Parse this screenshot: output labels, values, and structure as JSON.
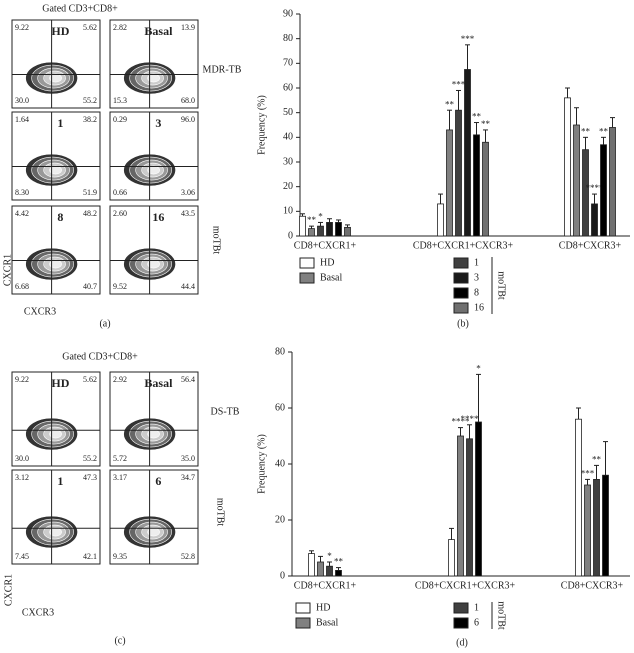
{
  "chart_data": [
    {
      "type": "bar",
      "panel_label": "(b)",
      "y_label": "Frequency (%)",
      "categories": [
        "CD8+CXCR1+",
        "CD8+CXCR1+CXCR3+",
        "CD8+CXCR3+"
      ],
      "ylim": [
        0,
        90
      ],
      "yticks": [
        0,
        10,
        20,
        30,
        40,
        50,
        60,
        70,
        80,
        90
      ],
      "legend_group_label": "moTBt",
      "series": [
        {
          "name": "HD",
          "color": "#ffffff",
          "values": [
            8,
            13,
            56
          ],
          "errors": [
            1,
            4,
            4
          ],
          "stars": [
            null,
            null,
            null
          ]
        },
        {
          "name": "Basal",
          "color": "#808080",
          "values": [
            3,
            43,
            45
          ],
          "errors": [
            1,
            8,
            7
          ],
          "stars": [
            "**",
            "**",
            null
          ]
        },
        {
          "name": "1",
          "color": "#404040",
          "values": [
            4,
            51,
            35
          ],
          "errors": [
            1.5,
            8,
            5
          ],
          "stars": [
            "*",
            "***",
            "**"
          ]
        },
        {
          "name": "3",
          "color": "#1a1a1a",
          "values": [
            5.5,
            67.5,
            13
          ],
          "errors": [
            1.5,
            10,
            4
          ],
          "stars": [
            null,
            "***",
            "****"
          ]
        },
        {
          "name": "8",
          "color": "#000000",
          "values": [
            5.5,
            41,
            37
          ],
          "errors": [
            1,
            5,
            3
          ],
          "stars": [
            null,
            "**",
            "**"
          ]
        },
        {
          "name": "16",
          "color": "#707070",
          "values": [
            3.5,
            38,
            44
          ],
          "errors": [
            1,
            5,
            4
          ],
          "stars": [
            null,
            "**",
            null
          ]
        }
      ]
    },
    {
      "type": "bar",
      "panel_label": "(d)",
      "y_label": "Frequency (%)",
      "categories": [
        "CD8+CXCR1+",
        "CD8+CXCR1+CXCR3+",
        "CD8+CXCR3+"
      ],
      "ylim": [
        0,
        80
      ],
      "yticks": [
        0,
        20,
        40,
        60,
        80
      ],
      "legend_group_label": "moTBt",
      "series": [
        {
          "name": "HD",
          "color": "#ffffff",
          "values": [
            8,
            13,
            56
          ],
          "errors": [
            1,
            4,
            4
          ],
          "stars": [
            null,
            null,
            null
          ]
        },
        {
          "name": "Basal",
          "color": "#808080",
          "values": [
            5,
            50,
            32.5
          ],
          "errors": [
            2,
            3,
            2
          ],
          "stars": [
            null,
            "****",
            "***"
          ]
        },
        {
          "name": "1",
          "color": "#404040",
          "values": [
            3.5,
            49,
            34.5
          ],
          "errors": [
            1.5,
            5,
            5
          ],
          "stars": [
            "*",
            "****",
            "**"
          ]
        },
        {
          "name": "6",
          "color": "#000000",
          "values": [
            2,
            55,
            36
          ],
          "errors": [
            1,
            17,
            12
          ],
          "stars": [
            "**",
            "*",
            null
          ]
        }
      ]
    }
  ],
  "flow_figures": [
    {
      "title": "Gated CD3+CD8+",
      "panel_label": "(a)",
      "x_label": "CXCR3",
      "y_label": "CXCR1",
      "row_labels": [
        "MDR-TB",
        "moTBt"
      ],
      "plots": [
        {
          "name": "HD",
          "quadrants": [
            "9.22",
            "5.62",
            "30.0",
            "55.2"
          ]
        },
        {
          "name": "Basal",
          "quadrants": [
            "2.82",
            "13.9",
            "15.3",
            "68.0"
          ]
        },
        {
          "name": "1",
          "quadrants": [
            "1.64",
            "38.2",
            "8.30",
            "51.9"
          ]
        },
        {
          "name": "3",
          "quadrants": [
            "0.29",
            "96.0",
            "0.66",
            "3.06"
          ]
        },
        {
          "name": "8",
          "quadrants": [
            "4.42",
            "48.2",
            "6.68",
            "40.7"
          ]
        },
        {
          "name": "16",
          "quadrants": [
            "2.60",
            "43.5",
            "9.52",
            "44.4"
          ]
        }
      ]
    },
    {
      "title": "Gated CD3+CD8+",
      "panel_label": "(c)",
      "x_label": "CXCR3",
      "y_label": "CXCR1",
      "row_labels": [
        "DS-TB",
        "moTBt"
      ],
      "plots": [
        {
          "name": "HD",
          "quadrants": [
            "9.22",
            "5.62",
            "30.0",
            "55.2"
          ]
        },
        {
          "name": "Basal",
          "quadrants": [
            "2.92",
            "56.4",
            "5.72",
            "35.0"
          ]
        },
        {
          "name": "1",
          "quadrants": [
            "3.12",
            "47.3",
            "7.45",
            "42.1"
          ]
        },
        {
          "name": "6",
          "quadrants": [
            "3.17",
            "34.7",
            "9.35",
            "52.8"
          ]
        }
      ]
    }
  ]
}
